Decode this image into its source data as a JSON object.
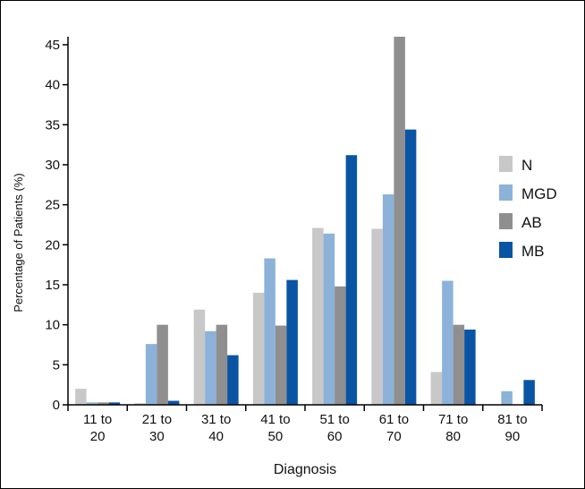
{
  "chart_data": {
    "type": "bar",
    "xlabel": "Diagnosis",
    "ylabel": "Percentage of Patients (%)",
    "ylim": [
      0,
      46
    ],
    "yticks": [
      0,
      5,
      10,
      15,
      20,
      25,
      30,
      35,
      40,
      45
    ],
    "grid": false,
    "legend_position": "right",
    "categories": [
      [
        "11 to",
        "20"
      ],
      [
        "21 to",
        "30"
      ],
      [
        "31 to",
        "40"
      ],
      [
        "41 to",
        "50"
      ],
      [
        "51 to",
        "60"
      ],
      [
        "61 to",
        "70"
      ],
      [
        "71 to",
        "80"
      ],
      [
        "81 to",
        "90"
      ]
    ],
    "series": [
      {
        "name": "N",
        "color": "#c8c8c8",
        "values": [
          2.0,
          0.2,
          11.9,
          14.0,
          22.1,
          22.0,
          4.1,
          0.0
        ]
      },
      {
        "name": "MGD",
        "color": "#8cb2da",
        "values": [
          0.3,
          7.6,
          9.2,
          18.3,
          21.4,
          26.3,
          15.5,
          1.7
        ]
      },
      {
        "name": "AB",
        "color": "#8f8f8f",
        "values": [
          0.3,
          10.0,
          10.0,
          9.9,
          14.8,
          46.0,
          10.0,
          0.0
        ]
      },
      {
        "name": "MB",
        "color": "#0a54a4",
        "values": [
          0.3,
          0.5,
          6.2,
          15.6,
          31.2,
          34.4,
          9.4,
          3.1
        ]
      }
    ]
  }
}
